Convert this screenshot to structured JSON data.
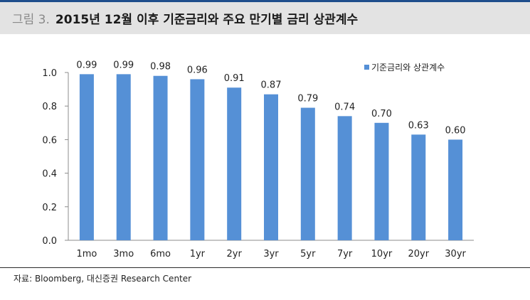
{
  "header": {
    "figure_label": "그림 3.",
    "title": "2015년 12월 이후 기준금리와 주요 만기별 금리 상관계수"
  },
  "chart_data": {
    "type": "bar",
    "categories": [
      "1mo",
      "3mo",
      "6mo",
      "1yr",
      "2yr",
      "3yr",
      "5yr",
      "7yr",
      "10yr",
      "20yr",
      "30yr"
    ],
    "series": [
      {
        "name": "기준금리와 상관계수",
        "values": [
          0.99,
          0.99,
          0.98,
          0.96,
          0.91,
          0.87,
          0.79,
          0.74,
          0.7,
          0.63,
          0.6
        ]
      }
    ],
    "value_labels": [
      "0.99",
      "0.99",
      "0.98",
      "0.96",
      "0.91",
      "0.87",
      "0.79",
      "0.74",
      "0.70",
      "0.63",
      "0.60"
    ],
    "ylim": [
      0,
      1.0
    ],
    "yticks": [
      0.0,
      0.2,
      0.4,
      0.6,
      0.8,
      1.0
    ],
    "ytick_labels": [
      "0.0",
      "0.2",
      "0.4",
      "0.6",
      "0.8",
      "1.0"
    ],
    "legend_position": "top-right",
    "grid": false,
    "bar_color": "#5590d6"
  },
  "footer": {
    "source": "자료: Bloomberg, 대신증권 Research Center"
  }
}
